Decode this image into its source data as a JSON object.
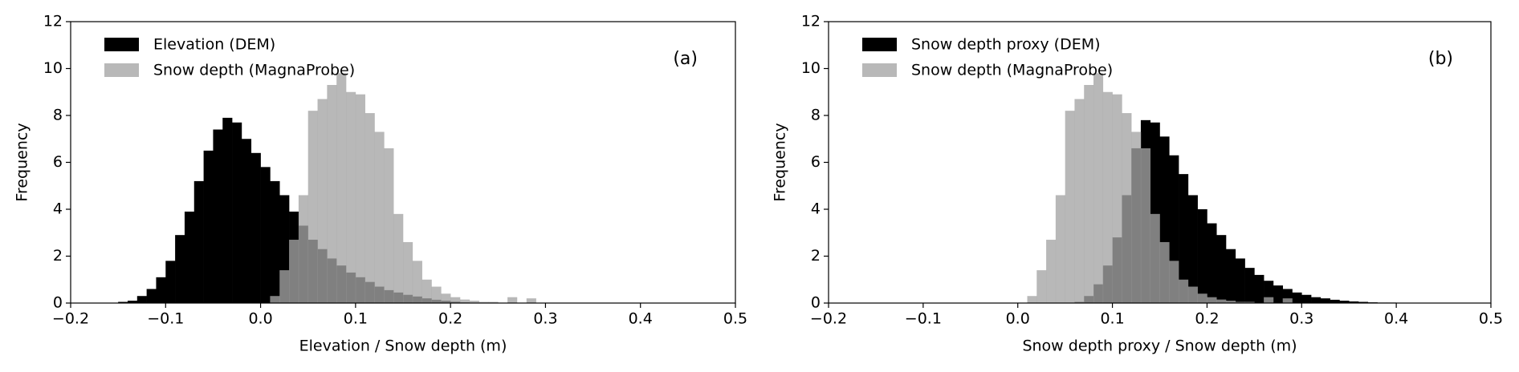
{
  "chart_data": [
    {
      "type": "histogram",
      "xlabel": "Elevation / Snow depth (m)",
      "ylabel": "Frequency",
      "annotation": "(a)",
      "legend": "upper left",
      "xlim": [
        -0.2,
        0.5
      ],
      "ylim": [
        0,
        12
      ],
      "xticks": [
        {
          "value": -0.2,
          "label": "−0.2"
        },
        {
          "value": -0.1,
          "label": "−0.1"
        },
        {
          "value": 0,
          "label": "0.0"
        },
        0.1,
        0.2,
        0.3,
        0.4,
        0.5
      ],
      "yticks": [
        0,
        2,
        4,
        6,
        8,
        10,
        12
      ],
      "series": [
        {
          "name": "Elevation (DEM)",
          "color": "#000000",
          "alpha": 1,
          "bins": [
            -0.15,
            -0.14,
            -0.13,
            -0.12,
            -0.11,
            -0.1,
            -0.09,
            -0.08,
            -0.07,
            -0.06,
            -0.05,
            -0.04,
            -0.03,
            -0.02,
            -0.01,
            0.0,
            0.01,
            0.02,
            0.03,
            0.04,
            0.05,
            0.06,
            0.07,
            0.08,
            0.09,
            0.1,
            0.11,
            0.12,
            0.13,
            0.14,
            0.15,
            0.16,
            0.17,
            0.18,
            0.19,
            0.2,
            0.21,
            0.22
          ],
          "values": [
            0.05,
            0.1,
            0.3,
            0.6,
            1.1,
            1.8,
            2.9,
            3.9,
            5.2,
            6.5,
            7.4,
            7.9,
            7.7,
            7.0,
            6.4,
            5.8,
            5.2,
            4.6,
            3.9,
            3.3,
            2.7,
            2.3,
            1.9,
            1.6,
            1.3,
            1.1,
            0.9,
            0.7,
            0.55,
            0.45,
            0.35,
            0.28,
            0.2,
            0.14,
            0.1,
            0.06,
            0.03
          ]
        },
        {
          "name": "Snow depth (MagnaProbe)",
          "color": "#a4a4a4",
          "alpha": 0.78,
          "bins": [
            0.01,
            0.02,
            0.03,
            0.04,
            0.05,
            0.06,
            0.07,
            0.08,
            0.09,
            0.1,
            0.11,
            0.12,
            0.13,
            0.14,
            0.15,
            0.16,
            0.17,
            0.18,
            0.19,
            0.2,
            0.21,
            0.22,
            0.23,
            0.24,
            0.25,
            0.26,
            0.27,
            0.28,
            0.29
          ],
          "values": [
            0.3,
            1.4,
            2.7,
            4.6,
            8.2,
            8.7,
            9.3,
            9.8,
            9.0,
            8.9,
            8.1,
            7.3,
            6.6,
            3.8,
            2.6,
            1.8,
            1.0,
            0.7,
            0.4,
            0.25,
            0.15,
            0.1,
            0.05,
            0.05,
            0,
            0.25,
            0,
            0.2
          ]
        }
      ]
    },
    {
      "type": "histogram",
      "xlabel": "Snow depth proxy / Snow depth (m)",
      "ylabel": "Frequency",
      "annotation": "(b)",
      "legend": "upper left",
      "xlim": [
        -0.2,
        0.5
      ],
      "ylim": [
        0,
        12
      ],
      "xticks": [
        {
          "value": -0.2,
          "label": "−0.2"
        },
        {
          "value": -0.1,
          "label": "−0.1"
        },
        {
          "value": 0,
          "label": "0.0"
        },
        0.1,
        0.2,
        0.3,
        0.4,
        0.5
      ],
      "yticks": [
        0,
        2,
        4,
        6,
        8,
        10,
        12
      ],
      "series": [
        {
          "name": "Snow depth proxy (DEM)",
          "color": "#000000",
          "alpha": 1,
          "bins": [
            0.06,
            0.07,
            0.08,
            0.09,
            0.1,
            0.11,
            0.12,
            0.13,
            0.14,
            0.15,
            0.16,
            0.17,
            0.18,
            0.19,
            0.2,
            0.21,
            0.22,
            0.23,
            0.24,
            0.25,
            0.26,
            0.27,
            0.28,
            0.29,
            0.3,
            0.31,
            0.32,
            0.33,
            0.34,
            0.35,
            0.36,
            0.37,
            0.38,
            0.39,
            0.4,
            0.41,
            0.42
          ],
          "values": [
            0.05,
            0.3,
            0.8,
            1.6,
            2.8,
            4.6,
            6.6,
            7.8,
            7.7,
            7.1,
            6.3,
            5.5,
            4.6,
            4.0,
            3.4,
            2.9,
            2.3,
            1.9,
            1.5,
            1.2,
            0.95,
            0.75,
            0.6,
            0.45,
            0.35,
            0.25,
            0.2,
            0.14,
            0.1,
            0.07,
            0.05,
            0.03,
            0.02,
            0.02,
            0.01,
            0.01
          ]
        },
        {
          "name": "Snow depth (MagnaProbe)",
          "color": "#a4a4a4",
          "alpha": 0.78,
          "bins": [
            0.01,
            0.02,
            0.03,
            0.04,
            0.05,
            0.06,
            0.07,
            0.08,
            0.09,
            0.1,
            0.11,
            0.12,
            0.13,
            0.14,
            0.15,
            0.16,
            0.17,
            0.18,
            0.19,
            0.2,
            0.21,
            0.22,
            0.23,
            0.24,
            0.25,
            0.26,
            0.27,
            0.28,
            0.29
          ],
          "values": [
            0.3,
            1.4,
            2.7,
            4.6,
            8.2,
            8.7,
            9.3,
            9.8,
            9.0,
            8.9,
            8.1,
            7.3,
            6.6,
            3.8,
            2.6,
            1.8,
            1.0,
            0.7,
            0.4,
            0.25,
            0.15,
            0.1,
            0.05,
            0.05,
            0,
            0.25,
            0,
            0.2
          ]
        }
      ]
    }
  ]
}
